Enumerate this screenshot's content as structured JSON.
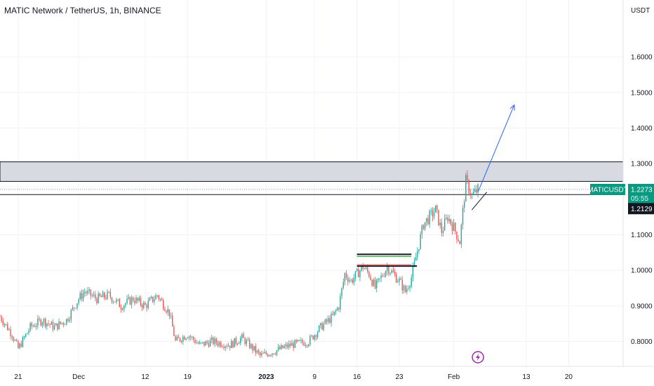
{
  "header": {
    "title": "MATIC Network / TetherUS, 1h, BINANCE"
  },
  "colors": {
    "up": "#26a69a",
    "down": "#ef5350",
    "grid": "#f0f3fa",
    "zone": "#d1d4dc",
    "arrow": "#2962ff",
    "badge": "#089981",
    "price_line": "#2962ff",
    "event": "#9c27b0"
  },
  "event_icon": "lightning-icon",
  "chart_data": {
    "type": "candlestick",
    "title": "MATIC Network / TetherUS, 1h, BINANCE",
    "y_unit": "USDT",
    "ylim": [
      0.73,
      1.76
    ],
    "y_ticks": [
      "1.6000",
      "1.5000",
      "1.4000",
      "1.3000",
      "1.1000",
      "1.0000",
      "0.9000",
      "0.8000"
    ],
    "x_ticks": [
      {
        "label": "21",
        "date": "2022-11-21"
      },
      {
        "label": "Dec",
        "date": "2022-12-01"
      },
      {
        "label": "12",
        "date": "2022-12-12"
      },
      {
        "label": "19",
        "date": "2022-12-19"
      },
      {
        "label": "2023",
        "date": "2023-01-01",
        "bold": true
      },
      {
        "label": "9",
        "date": "2023-01-09"
      },
      {
        "label": "16",
        "date": "2023-01-16"
      },
      {
        "label": "23",
        "date": "2023-01-23"
      },
      {
        "label": "Feb",
        "date": "2023-02-01"
      },
      {
        "label": "13",
        "date": "2023-02-13"
      },
      {
        "label": "20",
        "date": "2023-02-20"
      }
    ],
    "xlim": [
      "2022-11-18",
      "2023-03-01"
    ],
    "path": [
      [
        "2022-11-18",
        0.87
      ],
      [
        "2022-11-20",
        0.82
      ],
      [
        "2022-11-21",
        0.78
      ],
      [
        "2022-11-23",
        0.84
      ],
      [
        "2022-11-25",
        0.86
      ],
      [
        "2022-11-27",
        0.84
      ],
      [
        "2022-11-29",
        0.86
      ],
      [
        "2022-12-01",
        0.92
      ],
      [
        "2022-12-02",
        0.94
      ],
      [
        "2022-12-04",
        0.92
      ],
      [
        "2022-12-06",
        0.93
      ],
      [
        "2022-12-08",
        0.9
      ],
      [
        "2022-12-10",
        0.92
      ],
      [
        "2022-12-12",
        0.9
      ],
      [
        "2022-12-14",
        0.93
      ],
      [
        "2022-12-16",
        0.88
      ],
      [
        "2022-12-17",
        0.8
      ],
      [
        "2022-12-19",
        0.82
      ],
      [
        "2022-12-21",
        0.79
      ],
      [
        "2022-12-23",
        0.8
      ],
      [
        "2022-12-26",
        0.79
      ],
      [
        "2022-12-28",
        0.81
      ],
      [
        "2022-12-31",
        0.76
      ],
      [
        "2023-01-02",
        0.77
      ],
      [
        "2023-01-05",
        0.79
      ],
      [
        "2023-01-08",
        0.8
      ],
      [
        "2023-01-10",
        0.84
      ],
      [
        "2023-01-12",
        0.87
      ],
      [
        "2023-01-13",
        0.9
      ],
      [
        "2023-01-14",
        0.99
      ],
      [
        "2023-01-15",
        0.97
      ],
      [
        "2023-01-17",
        1.01
      ],
      [
        "2023-01-18",
        0.99
      ],
      [
        "2023-01-19",
        0.95
      ],
      [
        "2023-01-20",
        0.98
      ],
      [
        "2023-01-21",
        1.01
      ],
      [
        "2023-01-23",
        0.97
      ],
      [
        "2023-01-24",
        0.94
      ],
      [
        "2023-01-25",
        0.98
      ],
      [
        "2023-01-27",
        1.13
      ],
      [
        "2023-01-28",
        1.15
      ],
      [
        "2023-01-29",
        1.17
      ],
      [
        "2023-01-30",
        1.11
      ],
      [
        "2023-01-31",
        1.15
      ],
      [
        "2023-02-01",
        1.12
      ],
      [
        "2023-02-02",
        1.08
      ],
      [
        "2023-02-03",
        1.25
      ],
      [
        "2023-02-04",
        1.21
      ],
      [
        "2023-02-05",
        1.227
      ]
    ],
    "resistance_zone": [
      1.25,
      1.305
    ],
    "levels": [
      1.2129,
      1.2273
    ],
    "current_price": {
      "symbol": "MATICUSDT",
      "price": "1.2273",
      "countdown": "05:55",
      "level": "1.2129"
    },
    "range_box": {
      "x0": "2023-01-16",
      "x1": "2023-01-25",
      "upper": 1.045,
      "lower": 1.012
    },
    "projection_arrow": {
      "from": [
        "2023-02-05",
        1.22
      ],
      "to": [
        "2023-02-11",
        1.465
      ]
    },
    "support_trendline": {
      "from": [
        "2023-02-04",
        1.17
      ],
      "to": [
        "2023-02-06",
        1.22
      ]
    },
    "event_marker": {
      "date": "2023-02-05"
    }
  }
}
